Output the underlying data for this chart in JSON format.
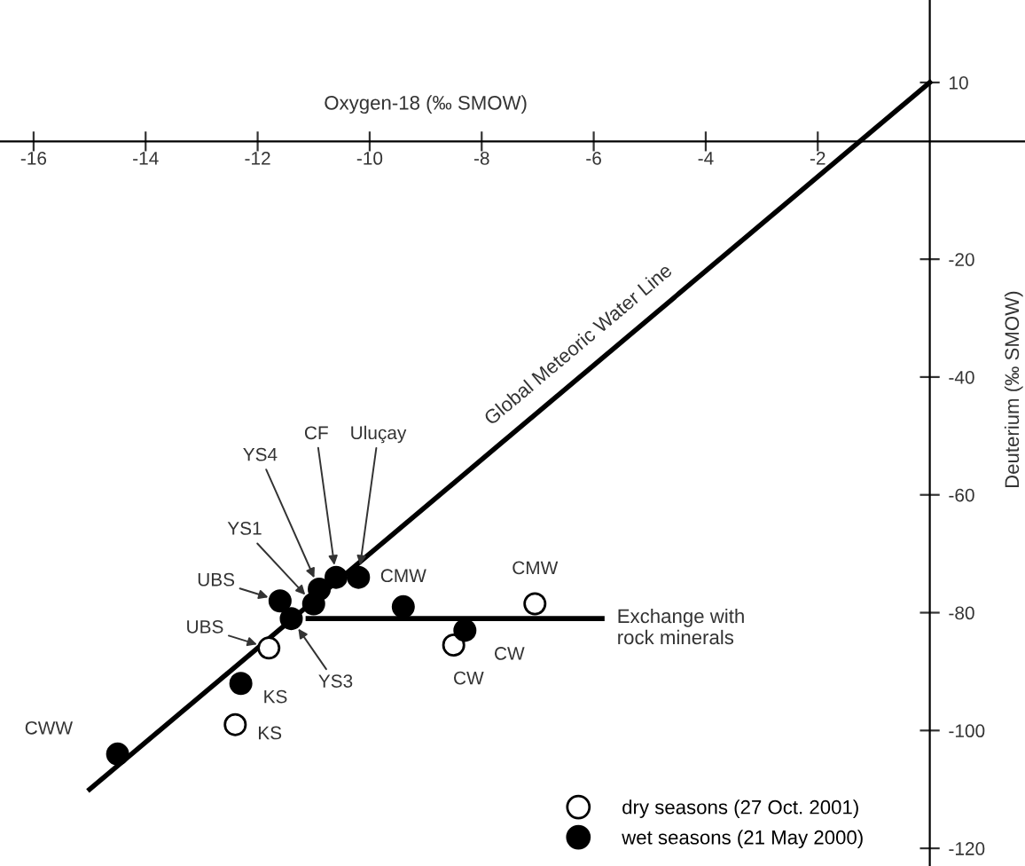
{
  "chart_data": {
    "type": "scatter",
    "xlabel": "Oxygen-18 (‰ SMOW)",
    "ylabel": "Deuterium (‰ SMOW)",
    "xlim": [
      -16.6,
      1.7
    ],
    "ylim": [
      -123,
      24
    ],
    "xticks": [
      -16,
      -14,
      -12,
      -10,
      -8,
      -6,
      -4,
      -2
    ],
    "yticks": [
      10,
      -20,
      -40,
      -60,
      -80,
      -100,
      -120
    ],
    "grid": false,
    "legend": "bottom right",
    "series": [
      {
        "name": "dry seasons (27 Oct. 2001)",
        "color": "#ffffff",
        "marker": "circle",
        "x": [
          -12.4,
          -11.8,
          -8.5,
          -7.05
        ],
        "values": [
          -99,
          -86,
          -85.5,
          -78.5
        ]
      },
      {
        "name": "wet seasons (21 May 2000)",
        "color": "#000000",
        "marker": "circle",
        "x": [
          -14.5,
          -12.3,
          -11.6,
          -11.4,
          -11.0,
          -10.9,
          -10.6,
          -10.2,
          -9.4,
          -8.3
        ],
        "values": [
          -104,
          -92,
          -78,
          -81,
          -78.5,
          -76,
          -74,
          -74,
          -79,
          -83
        ]
      },
      {
        "type": "line",
        "color": "#000000",
        "x": [
          -15.0,
          0
        ],
        "values": [
          -110,
          10
        ]
      },
      {
        "type": "line",
        "color": "#000000",
        "x": [
          -11.1,
          -5.85
        ],
        "values": [
          -81,
          -81
        ]
      }
    ],
    "annotations": [
      {
        "text": "CWW",
        "x": -14.5,
        "y": -104
      },
      {
        "text": "KS",
        "x": -12.3,
        "y": -92
      },
      {
        "text": "KS",
        "x": -12.4,
        "y": -99
      },
      {
        "text": "UBS",
        "x": -11.6,
        "y": -78
      },
      {
        "text": "UBS",
        "x": -11.8,
        "y": -86
      },
      {
        "text": "YS3",
        "x": -11.4,
        "y": -81
      },
      {
        "text": "YS1",
        "x": -11.0,
        "y": -78.5
      },
      {
        "text": "YS4",
        "x": -10.9,
        "y": -76
      },
      {
        "text": "CF",
        "x": -10.6,
        "y": -74
      },
      {
        "text": "Uluçay",
        "x": -10.2,
        "y": -74
      },
      {
        "text": "CMW",
        "x": -9.4,
        "y": -79
      },
      {
        "text": "CMW",
        "x": -7.05,
        "y": -78.5
      },
      {
        "text": "CW",
        "x": -8.3,
        "y": -83
      },
      {
        "text": "CW",
        "x": -8.5,
        "y": -85.5
      },
      {
        "text": "Global Meteoric Water Line",
        "x": -6,
        "y": -38
      },
      {
        "text": "Exchange with\nrock minerals",
        "x": -5.85,
        "y": -81
      }
    ]
  }
}
